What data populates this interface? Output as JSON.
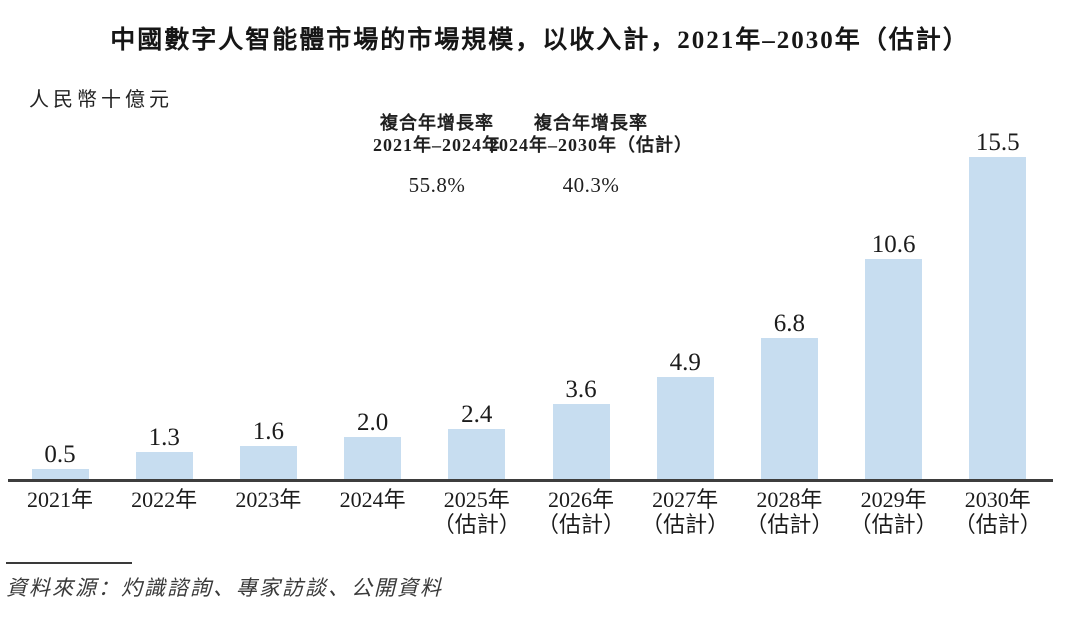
{
  "title": "中國數字人智能體市場的市場規模，以收入計，2021年–2030年（估計）",
  "unit_label": "人民幣十億元",
  "cagr_annotations": [
    {
      "header_line1": "複合年增長率",
      "header_line2": "2021年–2024年",
      "value": "55.8%"
    },
    {
      "header_line1": "複合年增長率",
      "header_line2": "2024年–2030年（估計）",
      "value": "40.3%"
    }
  ],
  "source_text": "資料來源：灼識諮詢、專家訪談、公開資料",
  "colors": {
    "bar_fill": "#C7DDF0",
    "axis_line": "#3d3d3d",
    "text": "#1f1f1f"
  },
  "chart_data": {
    "type": "bar",
    "title": "中國數字人智能體市場的市場規模，以收入計，2021年–2030年（估計）",
    "xlabel": "",
    "ylabel": "人民幣十億元",
    "ylim": [
      0,
      16
    ],
    "grid": false,
    "legend": "none",
    "categories": [
      "2021年",
      "2022年",
      "2023年",
      "2024年",
      "2025年（估計）",
      "2026年（估計）",
      "2027年（估計）",
      "2028年（估計）",
      "2029年（估計）",
      "2030年（估計）"
    ],
    "category_line1": [
      "2021年",
      "2022年",
      "2023年",
      "2024年",
      "2025年",
      "2026年",
      "2027年",
      "2028年",
      "2029年",
      "2030年"
    ],
    "category_line2": [
      "",
      "",
      "",
      "",
      "（估計）",
      "（估計）",
      "（估計）",
      "（估計）",
      "（估計）",
      "（估計）"
    ],
    "values": [
      0.5,
      1.3,
      1.6,
      2.0,
      2.4,
      3.6,
      4.9,
      6.8,
      10.6,
      15.5
    ],
    "value_labels": [
      "0.5",
      "1.3",
      "1.6",
      "2.0",
      "2.4",
      "3.6",
      "4.9",
      "6.8",
      "10.6",
      "15.5"
    ]
  }
}
